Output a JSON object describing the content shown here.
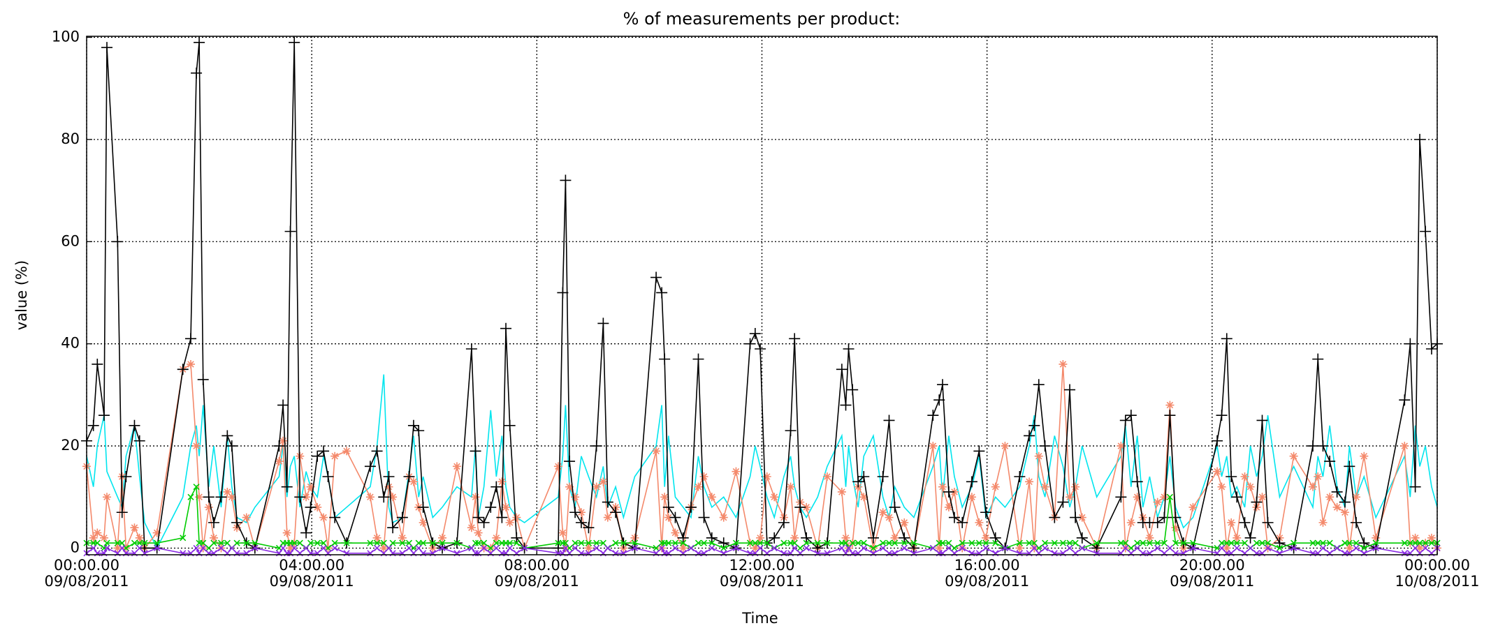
{
  "chart_data": {
    "type": "line",
    "title": "% of measurements per product:",
    "xlabel": "Time",
    "ylabel": "value (%)",
    "xlim": [
      0,
      24
    ],
    "ylim": [
      -1.3,
      100.2
    ],
    "grid": true,
    "yticks": [
      0,
      20,
      40,
      60,
      80,
      100
    ],
    "xticks": [
      {
        "value": 0,
        "label": "00:00.00\n09/08/2011"
      },
      {
        "value": 4,
        "label": "04:00.00\n09/08/2011"
      },
      {
        "value": 8,
        "label": "08:00.00\n09/08/2011"
      },
      {
        "value": 12,
        "label": "12:00.00\n09/08/2011"
      },
      {
        "value": 16,
        "label": "16:00.00\n09/08/2011"
      },
      {
        "value": 20,
        "label": "20:00.00\n09/08/2011"
      },
      {
        "value": 24,
        "label": "00:00.00\n10/08/2011"
      }
    ],
    "x": [
      0,
      0.12,
      0.19,
      0.31,
      0.36,
      0.55,
      0.63,
      0.7,
      0.85,
      0.94,
      1.03,
      1.25,
      1.71,
      1.85,
      1.95,
      2.0,
      2.07,
      2.17,
      2.26,
      2.39,
      2.5,
      2.58,
      2.67,
      2.84,
      2.99,
      3.42,
      3.49,
      3.56,
      3.62,
      3.69,
      3.79,
      3.9,
      3.98,
      4.1,
      4.21,
      4.29,
      4.41,
      4.62,
      5.04,
      5.16,
      5.28,
      5.37,
      5.44,
      5.61,
      5.73,
      5.81,
      5.9,
      5.98,
      6.15,
      6.32,
      6.58,
      6.84,
      6.91,
      6.96,
      7.06,
      7.18,
      7.28,
      7.38,
      7.45,
      7.52,
      7.64,
      7.78,
      8.38,
      8.46,
      8.51,
      8.58,
      8.68,
      8.79,
      8.92,
      9.06,
      9.18,
      9.26,
      9.4,
      9.54,
      9.74,
      10.12,
      10.22,
      10.27,
      10.34,
      10.46,
      10.6,
      10.74,
      10.87,
      10.97,
      11.11,
      11.32,
      11.54,
      11.79,
      11.88,
      11.97,
      12.09,
      12.22,
      12.39,
      12.51,
      12.58,
      12.68,
      12.79,
      12.99,
      13.16,
      13.42,
      13.49,
      13.54,
      13.61,
      13.71,
      13.81,
      13.98,
      14.15,
      14.26,
      14.36,
      14.53,
      14.7,
      15.04,
      15.15,
      15.21,
      15.32,
      15.42,
      15.56,
      15.73,
      15.86,
      15.98,
      16.15,
      16.32,
      16.58,
      16.75,
      16.84,
      16.92,
      17.03,
      17.2,
      17.35,
      17.47,
      17.57,
      17.69,
      17.95,
      18.38,
      18.46,
      18.56,
      18.67,
      18.77,
      18.89,
      19.03,
      19.15,
      19.25,
      19.35,
      19.49,
      19.66,
      20.09,
      20.17,
      20.26,
      20.34,
      20.44,
      20.58,
      20.68,
      20.79,
      20.89,
      20.99,
      21.2,
      21.45,
      21.79,
      21.88,
      21.97,
      22.09,
      22.22,
      22.36,
      22.44,
      22.56,
      22.7,
      22.91,
      23.42,
      23.52,
      23.61,
      23.69,
      23.79,
      23.9,
      24
    ],
    "series": [
      {
        "color": "#00e5ee",
        "marker": "none",
        "values": [
          18,
          12,
          20,
          26,
          15,
          10,
          8,
          18,
          24,
          14,
          5,
          0,
          10,
          20,
          24,
          18,
          28,
          12,
          20,
          8,
          22,
          12,
          6,
          5,
          8,
          14,
          20,
          10,
          16,
          18,
          8,
          15,
          12,
          10,
          18,
          14,
          6,
          8,
          12,
          20,
          34,
          8,
          5,
          6,
          15,
          22,
          10,
          14,
          6,
          8,
          12,
          10,
          20,
          6,
          12,
          27,
          14,
          22,
          12,
          8,
          6,
          5,
          10,
          18,
          28,
          12,
          8,
          18,
          14,
          10,
          16,
          8,
          12,
          6,
          14,
          20,
          28,
          12,
          22,
          10,
          8,
          6,
          18,
          12,
          8,
          10,
          6,
          14,
          20,
          16,
          10,
          6,
          14,
          18,
          12,
          8,
          6,
          10,
          16,
          22,
          12,
          20,
          14,
          8,
          18,
          22,
          10,
          6,
          12,
          8,
          6,
          16,
          20,
          10,
          22,
          14,
          8,
          12,
          18,
          6,
          10,
          8,
          12,
          20,
          26,
          14,
          10,
          22,
          16,
          8,
          12,
          20,
          10,
          18,
          24,
          12,
          22,
          8,
          14,
          6,
          10,
          18,
          8,
          4,
          6,
          20,
          14,
          18,
          10,
          12,
          8,
          20,
          14,
          18,
          26,
          10,
          16,
          8,
          18,
          14,
          24,
          12,
          8,
          20,
          10,
          14,
          6,
          18,
          10,
          24,
          16,
          20,
          12,
          8
        ]
      },
      {
        "color": "#f4896b",
        "marker": "asterisk",
        "values": [
          16,
          2,
          3,
          2,
          10,
          0,
          14,
          0,
          4,
          2,
          0,
          3,
          35,
          36,
          20,
          10,
          0,
          8,
          2,
          0,
          11,
          10,
          4,
          6,
          0,
          17,
          21,
          3,
          0,
          1,
          18,
          10,
          12,
          8,
          6,
          0,
          18,
          19,
          10,
          2,
          0,
          12,
          10,
          2,
          14,
          13,
          8,
          5,
          0,
          2,
          16,
          4,
          10,
          3,
          0,
          0,
          2,
          13,
          8,
          5,
          6,
          0,
          16,
          3,
          0,
          12,
          10,
          7,
          0,
          12,
          13,
          6,
          8,
          0,
          2,
          19,
          0,
          10,
          6,
          3,
          0,
          8,
          12,
          14,
          10,
          6,
          15,
          1,
          0,
          2,
          14,
          10,
          6,
          12,
          2,
          9,
          8,
          0,
          14,
          11,
          2,
          0,
          1,
          12,
          10,
          0,
          7,
          6,
          2,
          5,
          0,
          20,
          0,
          12,
          8,
          11,
          0,
          10,
          5,
          2,
          12,
          20,
          0,
          13,
          0,
          18,
          12,
          6,
          36,
          10,
          12,
          6,
          0,
          20,
          0,
          5,
          10,
          6,
          2,
          9,
          10,
          28,
          4,
          0,
          8,
          15,
          12,
          0,
          5,
          2,
          14,
          12,
          8,
          10,
          0,
          2,
          18,
          12,
          14,
          5,
          10,
          8,
          7,
          0,
          10,
          18,
          2,
          20,
          1,
          2,
          0,
          1,
          2,
          0
        ]
      },
      {
        "color": "#000000",
        "marker": "plus",
        "values": [
          21,
          24,
          36,
          26,
          98,
          60,
          7,
          14,
          24,
          21,
          0,
          0,
          35,
          41,
          93,
          99,
          33,
          10,
          5,
          10,
          22,
          20,
          5,
          1,
          0,
          20,
          28,
          12,
          62,
          99,
          10,
          3,
          8,
          18,
          19,
          14,
          6,
          1,
          16,
          19,
          10,
          14,
          4,
          6,
          14,
          24,
          23,
          8,
          1,
          0,
          1,
          39,
          19,
          6,
          5,
          8,
          12,
          6,
          43,
          24,
          2,
          0,
          0,
          50,
          72,
          17,
          7,
          5,
          4,
          20,
          44,
          9,
          7,
          1,
          0,
          53,
          50,
          37,
          8,
          6,
          2,
          8,
          37,
          6,
          2,
          1,
          0,
          40,
          42,
          39,
          1,
          2,
          5,
          23,
          41,
          8,
          2,
          0,
          1,
          35,
          28,
          39,
          31,
          13,
          14,
          2,
          14,
          25,
          8,
          2,
          0,
          26,
          29,
          32,
          11,
          6,
          5,
          13,
          19,
          7,
          2,
          0,
          14,
          22,
          24,
          32,
          20,
          6,
          9,
          31,
          6,
          2,
          0,
          10,
          25,
          26,
          13,
          5,
          5,
          5,
          6,
          26,
          6,
          1,
          0,
          21,
          26,
          41,
          14,
          10,
          5,
          2,
          9,
          25,
          5,
          1,
          0,
          20,
          37,
          20,
          17,
          11,
          9,
          16,
          5,
          1,
          0,
          29,
          40,
          12,
          80,
          62,
          39,
          40
        ]
      },
      {
        "color": "#00cc00",
        "marker": "x",
        "values": [
          1,
          1,
          1,
          0,
          1,
          1,
          1,
          0,
          1,
          1,
          1,
          1,
          2,
          10,
          12,
          1,
          1,
          0,
          1,
          1,
          1,
          0,
          1,
          1,
          1,
          0,
          1,
          1,
          1,
          1,
          1,
          0,
          1,
          1,
          1,
          0,
          1,
          1,
          1,
          1,
          1,
          0,
          1,
          1,
          1,
          0,
          1,
          1,
          1,
          1,
          1,
          0,
          1,
          1,
          1,
          0,
          1,
          1,
          1,
          1,
          1,
          0,
          1,
          1,
          1,
          0,
          1,
          1,
          1,
          1,
          1,
          0,
          1,
          1,
          1,
          0,
          1,
          1,
          1,
          1,
          1,
          0,
          1,
          1,
          1,
          0,
          1,
          1,
          1,
          1,
          1,
          0,
          1,
          1,
          1,
          0,
          1,
          1,
          1,
          1,
          1,
          0,
          1,
          1,
          1,
          0,
          1,
          1,
          1,
          1,
          1,
          0,
          1,
          1,
          1,
          0,
          1,
          1,
          1,
          1,
          1,
          0,
          1,
          1,
          1,
          0,
          1,
          1,
          1,
          1,
          1,
          0,
          1,
          1,
          1,
          0,
          1,
          1,
          1,
          1,
          1,
          10,
          1,
          1,
          1,
          0,
          1,
          1,
          1,
          1,
          1,
          0,
          1,
          1,
          1,
          0,
          1,
          1,
          1,
          1,
          1,
          0,
          1,
          1,
          1,
          0,
          1,
          1,
          1,
          1,
          1,
          1,
          1,
          1
        ]
      },
      {
        "color": "#8a2be2",
        "marker": "x",
        "values": [
          -1,
          0,
          -1,
          -1,
          0,
          -1,
          0,
          -1,
          -1,
          0,
          -1,
          0,
          -1,
          -1,
          0,
          -1,
          0,
          -1,
          -1,
          0,
          -1,
          0,
          -1,
          -1,
          0,
          -1,
          0,
          -1,
          -1,
          0,
          -1,
          0,
          -1,
          -1,
          0,
          -1,
          0,
          -1,
          -1,
          0,
          -1,
          0,
          -1,
          -1,
          0,
          -1,
          0,
          -1,
          -1,
          0,
          -1,
          0,
          -1,
          -1,
          0,
          -1,
          0,
          -1,
          -1,
          0,
          -1,
          0,
          -1,
          -1,
          0,
          -1,
          0,
          -1,
          -1,
          0,
          -1,
          0,
          -1,
          -1,
          0,
          -1,
          0,
          -1,
          -1,
          0,
          -1,
          0,
          -1,
          -1,
          0,
          -1,
          0,
          -1,
          -1,
          0,
          -1,
          0,
          -1,
          -1,
          0,
          -1,
          0,
          -1,
          -1,
          0,
          -1,
          0,
          -1,
          -1,
          0,
          -1,
          0,
          -1,
          -1,
          0,
          -1,
          0,
          -1,
          -1,
          0,
          -1,
          0,
          -1,
          -1,
          0,
          -1,
          0,
          -1,
          -1,
          0,
          -1,
          0,
          -1,
          -1,
          0,
          -1,
          0,
          -1,
          -1,
          0,
          -1,
          0,
          -1,
          -1,
          0,
          -1,
          0,
          -1,
          -1,
          0,
          -1,
          0,
          -1,
          -1,
          0,
          -1,
          0,
          -1,
          -1,
          0,
          -1,
          0,
          -1,
          -1,
          0,
          -1,
          0,
          -1,
          -1,
          0,
          -1,
          0,
          -1,
          -1,
          0,
          -1,
          0,
          -1,
          0
        ]
      }
    ]
  }
}
